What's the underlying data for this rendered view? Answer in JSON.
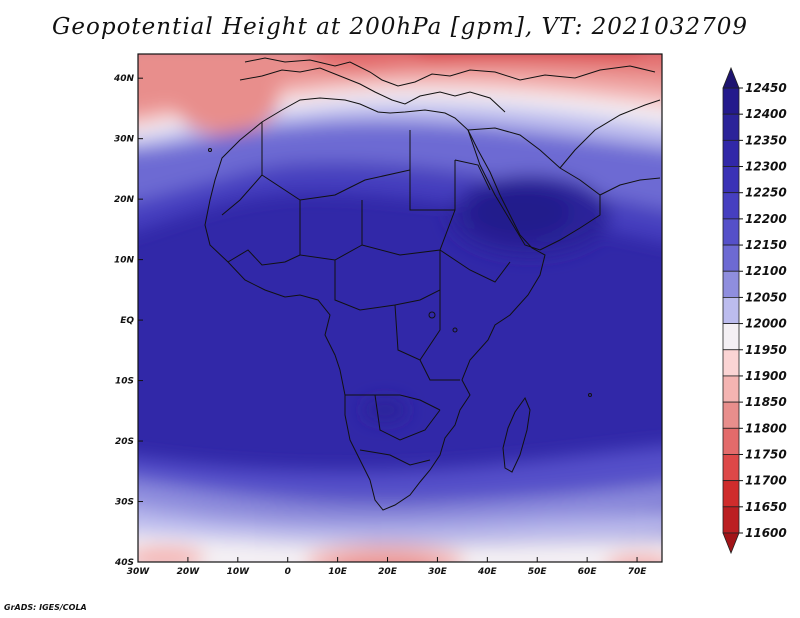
{
  "title": "Geopotential Height at 200hPa [gpm], VT: 2021032709",
  "footer": "GrADS: IGES/COLA",
  "map": {
    "lon_range": [
      -30,
      75
    ],
    "lat_range": [
      -40,
      44
    ],
    "lon_ticks": [
      {
        "value": -30,
        "label": "30W"
      },
      {
        "value": -20,
        "label": "20W"
      },
      {
        "value": -10,
        "label": "10W"
      },
      {
        "value": 0,
        "label": "0"
      },
      {
        "value": 10,
        "label": "10E"
      },
      {
        "value": 20,
        "label": "20E"
      },
      {
        "value": 30,
        "label": "30E"
      },
      {
        "value": 40,
        "label": "40E"
      },
      {
        "value": 50,
        "label": "50E"
      },
      {
        "value": 60,
        "label": "60E"
      },
      {
        "value": 70,
        "label": "70E"
      }
    ],
    "lat_ticks": [
      {
        "value": 40,
        "label": "40N"
      },
      {
        "value": 30,
        "label": "30N"
      },
      {
        "value": 20,
        "label": "20N"
      },
      {
        "value": 10,
        "label": "10N"
      },
      {
        "value": 0,
        "label": "EQ"
      },
      {
        "value": -10,
        "label": "10S"
      },
      {
        "value": -20,
        "label": "20S"
      },
      {
        "value": -30,
        "label": "30S"
      },
      {
        "value": -40,
        "label": "40S"
      }
    ]
  },
  "colorbar": {
    "levels": [
      12450,
      12400,
      12350,
      12300,
      12250,
      12200,
      12150,
      12100,
      12050,
      12000,
      11950,
      11900,
      11850,
      11800,
      11750,
      11700,
      11650,
      11600
    ],
    "colors": [
      "#241a8c",
      "#2b2399",
      "#3128a8",
      "#3a32b6",
      "#463fc0",
      "#5550c9",
      "#6d6ad3",
      "#8f8ede",
      "#bcbcee",
      "#f4f0f4",
      "#fbd4d4",
      "#f4b4b2",
      "#e88e8c",
      "#e36b6b",
      "#dd4848",
      "#cf2c2c",
      "#bb1f22"
    ]
  }
}
